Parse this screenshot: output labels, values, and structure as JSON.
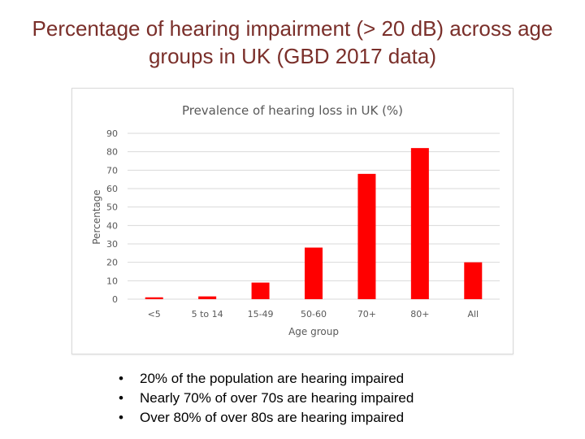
{
  "slide": {
    "title_line1": "Percentage of hearing impairment (> 20 dB) across age",
    "title_line2": "groups in UK (GBD 2017 data)"
  },
  "chart_data": {
    "type": "bar",
    "title": "Prevalence of hearing loss in UK (%)",
    "xlabel": "Age group",
    "ylabel": "Percentage",
    "categories": [
      "<5",
      "5 to 14",
      "15-49",
      "50-60",
      "70+",
      "80+",
      "All"
    ],
    "values": [
      1,
      1.5,
      9,
      28,
      68,
      82,
      20
    ],
    "ylim": [
      0,
      90
    ],
    "yticks": [
      0,
      10,
      20,
      30,
      40,
      50,
      60,
      70,
      80,
      90
    ],
    "grid": true,
    "bar_color": "#ff0000"
  },
  "bullets": [
    "20% of the population are hearing impaired",
    "Nearly 70% of over 70s are hearing impaired",
    "Over 80% of over 80s are hearing impaired"
  ]
}
